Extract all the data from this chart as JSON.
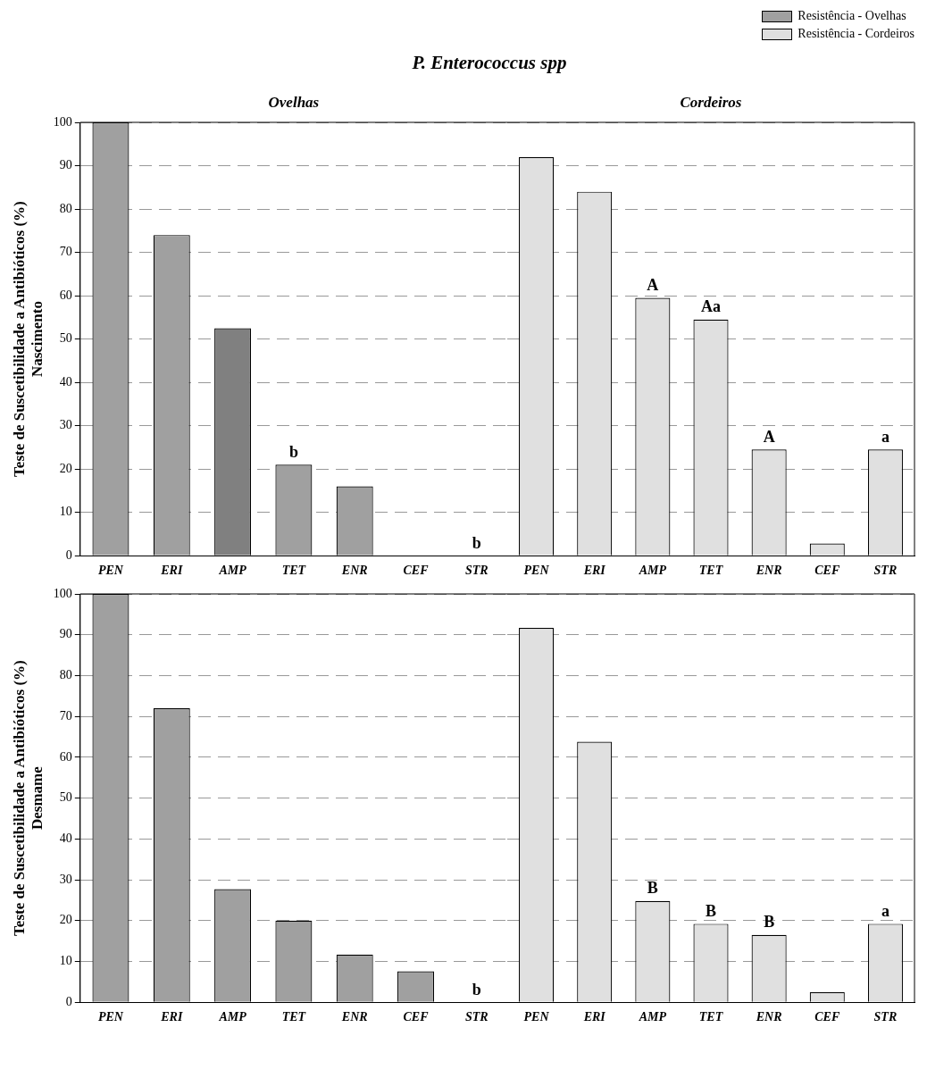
{
  "chart_data": [
    {
      "type": "bar",
      "title": "P. Enterococcus spp",
      "ylabel": "Teste de Suscetibilidade a Antibióticos (%)\nNascimento",
      "legend": "top right",
      "grid": "y",
      "categories": [
        "PEN",
        "ERI",
        "AMP",
        "TET",
        "ENR",
        "CEF",
        "STR"
      ],
      "ylim": [
        0,
        100
      ],
      "yticks": [
        0,
        10,
        20,
        30,
        40,
        50,
        60,
        70,
        80,
        90,
        100
      ],
      "series": [
        {
          "name": "Resistência - Ovelhas",
          "color": "#a0a0a0",
          "colors": [
            "#a0a0a0",
            "#a0a0a0",
            "#808080",
            "#a0a0a0",
            "#a0a0a0",
            "#a0a0a0",
            "#a0a0a0"
          ],
          "values": [
            100,
            74,
            52.5,
            21,
            16,
            0,
            0
          ]
        }
      ],
      "annotations": [
        "Ovelhas",
        {
          "text": "b",
          "x": "TET",
          "y": 21
        },
        {
          "text": "b",
          "x": "STR",
          "y": 0
        }
      ]
    },
    {
      "type": "bar",
      "legend": "top right",
      "grid": "y",
      "tick_labels": "x",
      "categories": [
        "PEN",
        "ERI",
        "AMP",
        "TET",
        "ENR",
        "CEF",
        "STR"
      ],
      "ylim": [
        0,
        100
      ],
      "yticks": [
        0,
        10,
        20,
        30,
        40,
        50,
        60,
        70,
        80,
        90,
        100
      ],
      "series": [
        {
          "name": "Resistência - Cordeiros",
          "color": "#e0e0e0",
          "values": [
            92,
            84,
            59.5,
            54.5,
            24.5,
            2.8,
            24.5
          ]
        }
      ],
      "annotations": [
        "Cordeiros",
        {
          "text": "A",
          "x": "AMP",
          "y": 59.5
        },
        {
          "text": "Aa",
          "x": "TET",
          "y": 54.5
        },
        {
          "text": "A",
          "x": "ENR",
          "y": 24.5
        },
        {
          "text": "a",
          "x": "STR",
          "y": 24.5
        }
      ]
    },
    {
      "type": "bar",
      "ylabel": "Teste de Suscetibilidade a Antibióticos (%)\nDesmame",
      "grid": "y",
      "categories": [
        "PEN",
        "ERI",
        "AMP",
        "TET",
        "ENR",
        "CEF",
        "STR"
      ],
      "ylim": [
        0,
        100
      ],
      "yticks": [
        0,
        10,
        20,
        30,
        40,
        50,
        60,
        70,
        80,
        90,
        100
      ],
      "series": [
        {
          "color": "#a0a0a0",
          "values": [
            100,
            72,
            27.7,
            20,
            11.7,
            7.6,
            0
          ]
        }
      ],
      "annotations": [
        {
          "text": "b",
          "x": "STR",
          "y": 0
        }
      ]
    },
    {
      "type": "bar",
      "grid": "y",
      "tick_labels": "x",
      "categories": [
        "PEN",
        "ERI",
        "AMP",
        "TET",
        "ENR",
        "CEF",
        "STR"
      ],
      "ylim": [
        0,
        100
      ],
      "yticks": [
        0,
        10,
        20,
        30,
        40,
        50,
        60,
        70,
        80,
        90,
        100
      ],
      "series": [
        {
          "color": "#e0e0e0",
          "values": [
            91.7,
            63.8,
            24.8,
            19.2,
            16.5,
            2.5,
            19.2
          ]
        }
      ],
      "annotations": [
        {
          "text": "B",
          "x": "AMP",
          "y": 24.8
        },
        {
          "text": "B",
          "x": "TET",
          "y": 19.2
        },
        {
          "text": "B",
          "x": "ENR",
          "y": 16.5
        },
        {
          "text": "a",
          "x": "STR",
          "y": 19.2
        }
      ]
    }
  ]
}
